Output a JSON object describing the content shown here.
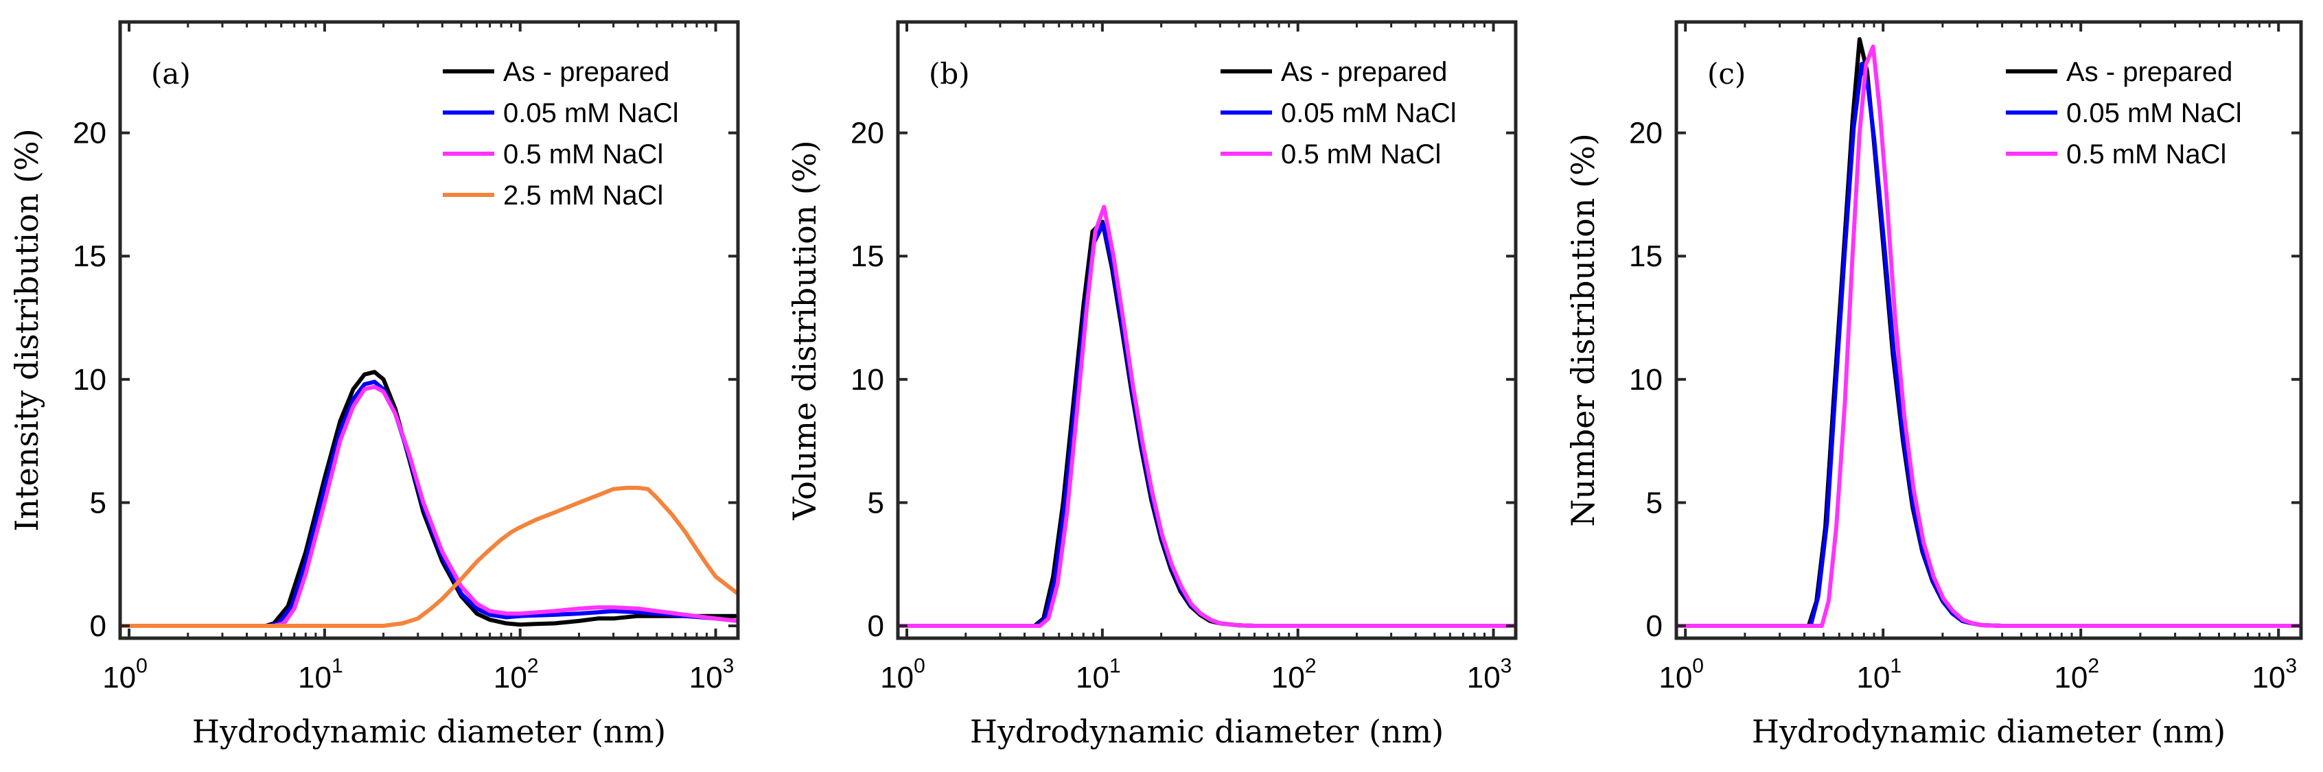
{
  "chart_data": [
    {
      "type": "line",
      "panel_label": "(a)",
      "xlabel": "Hydrodynamic diameter (nm)",
      "ylabel": "Intensity distribution (%)",
      "xscale": "log",
      "xlim": [
        0.9,
        1300
      ],
      "ylim": [
        -0.5,
        24.5
      ],
      "yticks": [
        "0",
        "5",
        "10",
        "15",
        "20"
      ],
      "xticks": [
        {
          "base": "10",
          "exp": "0"
        },
        {
          "base": "10",
          "exp": "1"
        },
        {
          "base": "10",
          "exp": "2"
        },
        {
          "base": "10",
          "exp": "3"
        }
      ],
      "legend_position": "top-right",
      "series": [
        {
          "name": "As - prepared",
          "color": "#000000",
          "x": [
            0.9,
            5.0,
            5.5,
            6.5,
            8,
            10,
            12,
            14,
            16,
            18,
            20,
            23,
            27,
            32,
            40,
            50,
            60,
            70,
            85,
            100,
            120,
            150,
            200,
            250,
            300,
            400,
            500,
            700,
            1000,
            1300
          ],
          "y": [
            0,
            0,
            0.1,
            0.8,
            3.0,
            6.0,
            8.3,
            9.6,
            10.2,
            10.3,
            10.0,
            8.8,
            6.8,
            4.6,
            2.6,
            1.2,
            0.5,
            0.25,
            0.1,
            0.05,
            0.08,
            0.1,
            0.2,
            0.3,
            0.3,
            0.4,
            0.4,
            0.4,
            0.4,
            0.4
          ]
        },
        {
          "name": "0.05 mM NaCl",
          "color": "#0000ff",
          "x": [
            0.9,
            5.2,
            5.8,
            6.8,
            8,
            10,
            12,
            14,
            16,
            18,
            20,
            23,
            27,
            32,
            40,
            50,
            60,
            70,
            85,
            100,
            150,
            200,
            250,
            300,
            400,
            500,
            700,
            1000,
            1300
          ],
          "y": [
            0,
            0,
            0.1,
            0.8,
            2.6,
            5.6,
            7.9,
            9.2,
            9.8,
            9.9,
            9.6,
            8.6,
            6.9,
            4.8,
            2.8,
            1.3,
            0.7,
            0.45,
            0.35,
            0.4,
            0.45,
            0.5,
            0.55,
            0.6,
            0.55,
            0.5,
            0.4,
            0.3,
            0.2
          ]
        },
        {
          "name": "0.5 mM NaCl",
          "color": "#ff33ff",
          "x": [
            0.9,
            5.5,
            6.2,
            7,
            8,
            10,
            12,
            14,
            16,
            18,
            20,
            23,
            27,
            32,
            40,
            50,
            60,
            70,
            85,
            100,
            150,
            200,
            250,
            300,
            400,
            500,
            700,
            1000,
            1300
          ],
          "y": [
            0,
            0,
            0.1,
            0.7,
            2.1,
            5.0,
            7.5,
            8.9,
            9.6,
            9.7,
            9.5,
            8.6,
            7.0,
            5.0,
            3.0,
            1.6,
            0.9,
            0.6,
            0.5,
            0.5,
            0.6,
            0.7,
            0.75,
            0.75,
            0.7,
            0.6,
            0.45,
            0.3,
            0.2
          ]
        },
        {
          "name": "2.5 mM NaCl",
          "color": "#f4833c",
          "x": [
            0.9,
            20,
            25,
            30,
            35,
            40,
            50,
            60,
            70,
            80,
            90,
            100,
            120,
            150,
            200,
            250,
            300,
            350,
            400,
            450,
            500,
            600,
            700,
            800,
            900,
            1000,
            1300
          ],
          "y": [
            0,
            0,
            0.1,
            0.3,
            0.7,
            1.1,
            1.9,
            2.6,
            3.1,
            3.5,
            3.8,
            4.0,
            4.3,
            4.6,
            5.0,
            5.3,
            5.55,
            5.6,
            5.6,
            5.55,
            5.2,
            4.5,
            3.8,
            3.1,
            2.5,
            2.0,
            1.3
          ]
        }
      ]
    },
    {
      "type": "line",
      "panel_label": "(b)",
      "xlabel": "Hydrodynamic diameter (nm)",
      "ylabel": "Volume distribution (%)",
      "xscale": "log",
      "xlim": [
        0.9,
        1300
      ],
      "ylim": [
        -0.5,
        24.5
      ],
      "yticks": [
        "0",
        "5",
        "10",
        "15",
        "20"
      ],
      "xticks": [
        {
          "base": "10",
          "exp": "0"
        },
        {
          "base": "10",
          "exp": "1"
        },
        {
          "base": "10",
          "exp": "2"
        },
        {
          "base": "10",
          "exp": "3"
        }
      ],
      "legend_position": "top-right",
      "series": [
        {
          "name": "As - prepared",
          "color": "#000000",
          "x": [
            0.9,
            4.5,
            5.0,
            5.6,
            6.3,
            7.1,
            8.0,
            8.9,
            10.0,
            11.2,
            12.6,
            14.1,
            15.8,
            17.8,
            20,
            22.4,
            25.1,
            28.2,
            31.6,
            35.5,
            40,
            50,
            60,
            1300
          ],
          "y": [
            0,
            0,
            0.3,
            2.0,
            5.0,
            9.0,
            13.0,
            16.0,
            16.4,
            14.5,
            12.0,
            9.5,
            7.2,
            5.1,
            3.5,
            2.3,
            1.4,
            0.8,
            0.45,
            0.2,
            0.1,
            0.02,
            0,
            0
          ]
        },
        {
          "name": "0.05 mM NaCl",
          "color": "#0000ff",
          "x": [
            0.9,
            4.6,
            5.1,
            5.7,
            6.4,
            7.2,
            8.1,
            9.0,
            10.1,
            11.3,
            12.7,
            14.2,
            15.9,
            17.9,
            20.1,
            22.5,
            25.2,
            28.3,
            31.7,
            35.6,
            40,
            50,
            60,
            1300
          ],
          "y": [
            0,
            0,
            0.3,
            1.8,
            4.8,
            8.7,
            12.6,
            15.5,
            16.3,
            14.6,
            12.1,
            9.6,
            7.3,
            5.2,
            3.6,
            2.4,
            1.5,
            0.85,
            0.5,
            0.25,
            0.1,
            0.02,
            0,
            0
          ]
        },
        {
          "name": "0.5 mM NaCl",
          "color": "#ff33ff",
          "x": [
            0.9,
            4.8,
            5.3,
            5.9,
            6.6,
            7.4,
            8.3,
            9.2,
            10.2,
            11.4,
            12.8,
            14.3,
            16.0,
            18.0,
            20.2,
            22.6,
            25.3,
            28.4,
            31.8,
            35.7,
            40,
            50,
            60,
            1300
          ],
          "y": [
            0,
            0,
            0.3,
            1.7,
            4.6,
            8.6,
            12.8,
            16.0,
            17.0,
            15.0,
            12.4,
            9.8,
            7.5,
            5.4,
            3.7,
            2.5,
            1.6,
            0.9,
            0.5,
            0.25,
            0.1,
            0.02,
            0,
            0
          ]
        }
      ]
    },
    {
      "type": "line",
      "panel_label": "(c)",
      "xlabel": "Hydrodynamic diameter (nm)",
      "ylabel": "Number distribution (%)",
      "xscale": "log",
      "xlim": [
        0.9,
        1300
      ],
      "ylim": [
        -0.5,
        24.5
      ],
      "yticks": [
        "0",
        "5",
        "10",
        "15",
        "20"
      ],
      "xticks": [
        {
          "base": "10",
          "exp": "0"
        },
        {
          "base": "10",
          "exp": "1"
        },
        {
          "base": "10",
          "exp": "2"
        },
        {
          "base": "10",
          "exp": "3"
        }
      ],
      "legend_position": "top-right",
      "series": [
        {
          "name": "As - prepared",
          "color": "#000000",
          "x": [
            0.9,
            4.2,
            4.6,
            5.1,
            5.6,
            6.3,
            7.0,
            7.6,
            8.3,
            8.9,
            10.0,
            11.2,
            12.6,
            14.1,
            15.8,
            17.8,
            20,
            22.4,
            25.1,
            28.2,
            31.6,
            40,
            1300
          ],
          "y": [
            0,
            0,
            1.0,
            4.0,
            9.0,
            15.0,
            20.5,
            23.8,
            22.5,
            20.0,
            15.5,
            11.0,
            7.5,
            4.8,
            3.0,
            1.8,
            1.0,
            0.5,
            0.2,
            0.1,
            0.03,
            0,
            0
          ]
        },
        {
          "name": "0.05 mM NaCl",
          "color": "#0000ff",
          "x": [
            0.9,
            4.3,
            4.7,
            5.2,
            5.7,
            6.4,
            7.1,
            7.8,
            8.4,
            9.0,
            10.1,
            11.3,
            12.7,
            14.2,
            15.9,
            17.9,
            20.1,
            22.5,
            25.2,
            28.3,
            31.7,
            40,
            1300
          ],
          "y": [
            0,
            0,
            1.2,
            4.2,
            9.2,
            15.2,
            20.2,
            22.8,
            21.8,
            19.8,
            15.6,
            11.2,
            7.6,
            4.9,
            3.0,
            1.8,
            1.0,
            0.5,
            0.2,
            0.1,
            0.03,
            0,
            0
          ]
        },
        {
          "name": "0.5 mM NaCl",
          "color": "#ff33ff",
          "x": [
            0.9,
            4.9,
            5.3,
            5.8,
            6.4,
            7.0,
            7.6,
            8.2,
            8.9,
            9.6,
            10.4,
            11.5,
            12.8,
            14.3,
            16.0,
            18.0,
            20.2,
            22.6,
            25.3,
            28.4,
            31.8,
            40,
            1300
          ],
          "y": [
            0,
            0,
            1.0,
            4.0,
            9.0,
            15.0,
            20.0,
            22.8,
            23.5,
            21.0,
            17.5,
            12.5,
            8.5,
            5.5,
            3.4,
            2.0,
            1.1,
            0.6,
            0.25,
            0.1,
            0.03,
            0,
            0
          ]
        }
      ]
    }
  ]
}
